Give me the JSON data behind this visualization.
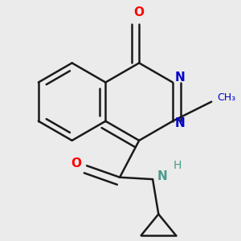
{
  "background_color": "#ebebeb",
  "bond_color": "#1a1a1a",
  "atom_colors": {
    "O": "#ff0000",
    "N": "#0000cc",
    "NH": "#4a9b8a",
    "C": "#1a1a1a"
  },
  "figsize": [
    3.0,
    3.0
  ],
  "dpi": 100
}
